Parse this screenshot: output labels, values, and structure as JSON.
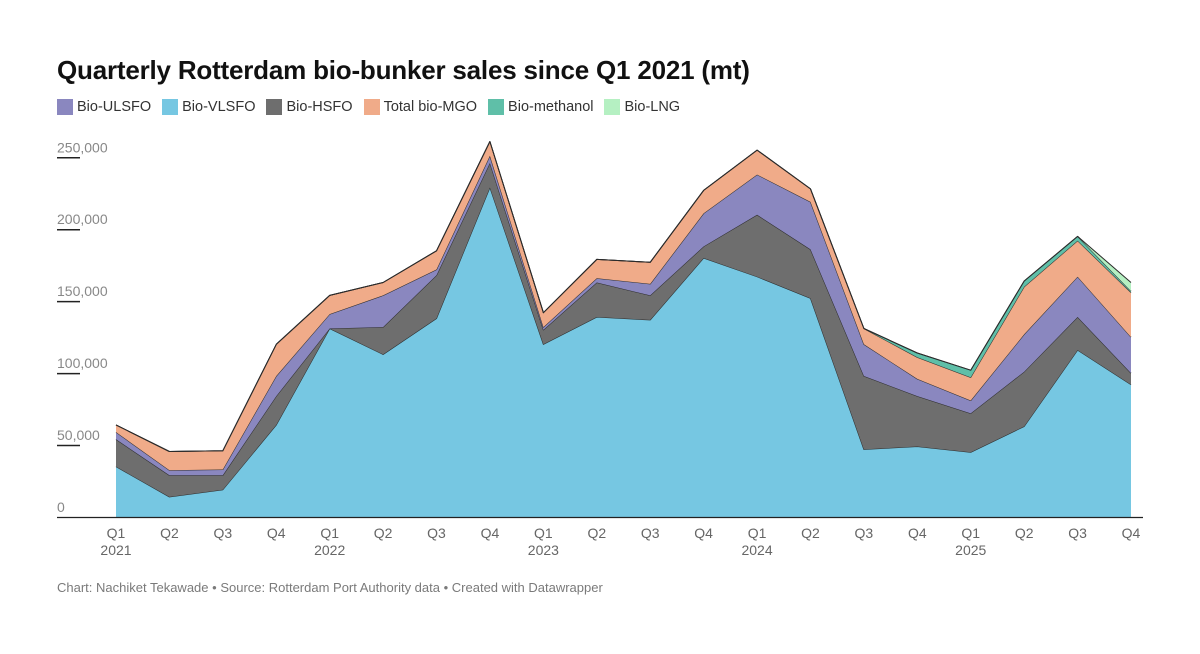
{
  "title": "Quarterly Rotterdam bio-bunker sales since Q1 2021 (mt)",
  "footer": {
    "credit": "Chart: Nachiket Tekawade",
    "source": "Source: Rotterdam Port Authority data",
    "tool": "Created with Datawrapper"
  },
  "chart_data": {
    "type": "area",
    "stacked": true,
    "title": "Quarterly Rotterdam bio-bunker sales since Q1 2021 (mt)",
    "xlabel": "",
    "ylabel": "",
    "ylim": [
      0,
      260000
    ],
    "yticks": [
      0,
      50000,
      100000,
      150000,
      200000,
      250000
    ],
    "ytick_labels": [
      "0",
      "50,000",
      "100,000",
      "150,000",
      "200,000",
      "250,000"
    ],
    "grid": false,
    "legend_position": "top-left",
    "categories": [
      "Q1 2021",
      "Q2 2021",
      "Q3 2021",
      "Q4 2021",
      "Q1 2022",
      "Q2 2022",
      "Q3 2022",
      "Q4 2022",
      "Q1 2023",
      "Q2 2023",
      "Q3 2023",
      "Q4 2023",
      "Q1 2024",
      "Q2 2024",
      "Q3 2024",
      "Q4 2024",
      "Q1 2025",
      "Q2 2025",
      "Q3 2025",
      "Q4 2025"
    ],
    "x_tick_labels": [
      {
        "q": "Q1",
        "year": "2021"
      },
      {
        "q": "Q2",
        "year": ""
      },
      {
        "q": "Q3",
        "year": ""
      },
      {
        "q": "Q4",
        "year": ""
      },
      {
        "q": "Q1",
        "year": "2022"
      },
      {
        "q": "Q2",
        "year": ""
      },
      {
        "q": "Q3",
        "year": ""
      },
      {
        "q": "Q4",
        "year": ""
      },
      {
        "q": "Q1",
        "year": "2023"
      },
      {
        "q": "Q2",
        "year": ""
      },
      {
        "q": "Q3",
        "year": ""
      },
      {
        "q": "Q4",
        "year": ""
      },
      {
        "q": "Q1",
        "year": "2024"
      },
      {
        "q": "Q2",
        "year": ""
      },
      {
        "q": "Q3",
        "year": ""
      },
      {
        "q": "Q4",
        "year": ""
      },
      {
        "q": "Q1",
        "year": "2025"
      },
      {
        "q": "Q2",
        "year": ""
      },
      {
        "q": "Q3",
        "year": ""
      },
      {
        "q": "Q4",
        "year": ""
      }
    ],
    "series": [
      {
        "name": "Bio-VLSFO",
        "color": "#76c7e2",
        "values": [
          35000,
          14000,
          19000,
          64000,
          131000,
          113000,
          138000,
          229000,
          120000,
          139000,
          137000,
          180000,
          167000,
          152000,
          47000,
          49000,
          45000,
          63000,
          116000,
          92000
        ]
      },
      {
        "name": "Bio-HSFO",
        "color": "#6e6e6e",
        "values": [
          19000,
          15000,
          10000,
          20000,
          0,
          19000,
          30000,
          17000,
          10000,
          24000,
          17000,
          8000,
          43000,
          34000,
          51000,
          35000,
          27000,
          38000,
          23000,
          8000
        ]
      },
      {
        "name": "Bio-ULSFO",
        "color": "#8a87bf",
        "values": [
          5000,
          3500,
          4000,
          14000,
          10000,
          22000,
          4000,
          5000,
          2000,
          3000,
          8000,
          23000,
          28000,
          33000,
          22000,
          12000,
          9000,
          26000,
          28000,
          25000
        ]
      },
      {
        "name": "Total bio-MGO",
        "color": "#f0ab89",
        "values": [
          5000,
          13000,
          13000,
          22000,
          13000,
          9000,
          13000,
          10000,
          10000,
          13000,
          15000,
          16000,
          17000,
          9000,
          11000,
          15000,
          16000,
          33000,
          25000,
          31000
        ]
      },
      {
        "name": "Bio-methanol",
        "color": "#5fbfa8",
        "values": [
          0,
          0,
          0,
          0,
          0,
          0,
          0,
          0,
          0,
          0,
          0,
          0,
          0,
          0,
          0,
          3000,
          5000,
          4000,
          3000,
          1000
        ]
      },
      {
        "name": "Bio-LNG",
        "color": "#b5f0c2",
        "values": [
          0,
          0,
          0,
          0,
          0,
          0,
          0,
          0,
          0,
          0,
          0,
          0,
          0,
          0,
          0,
          0,
          0,
          0,
          0,
          6000
        ]
      }
    ],
    "legend_order": [
      "Bio-ULSFO",
      "Bio-VLSFO",
      "Bio-HSFO",
      "Total bio-MGO",
      "Bio-methanol",
      "Bio-LNG"
    ]
  }
}
